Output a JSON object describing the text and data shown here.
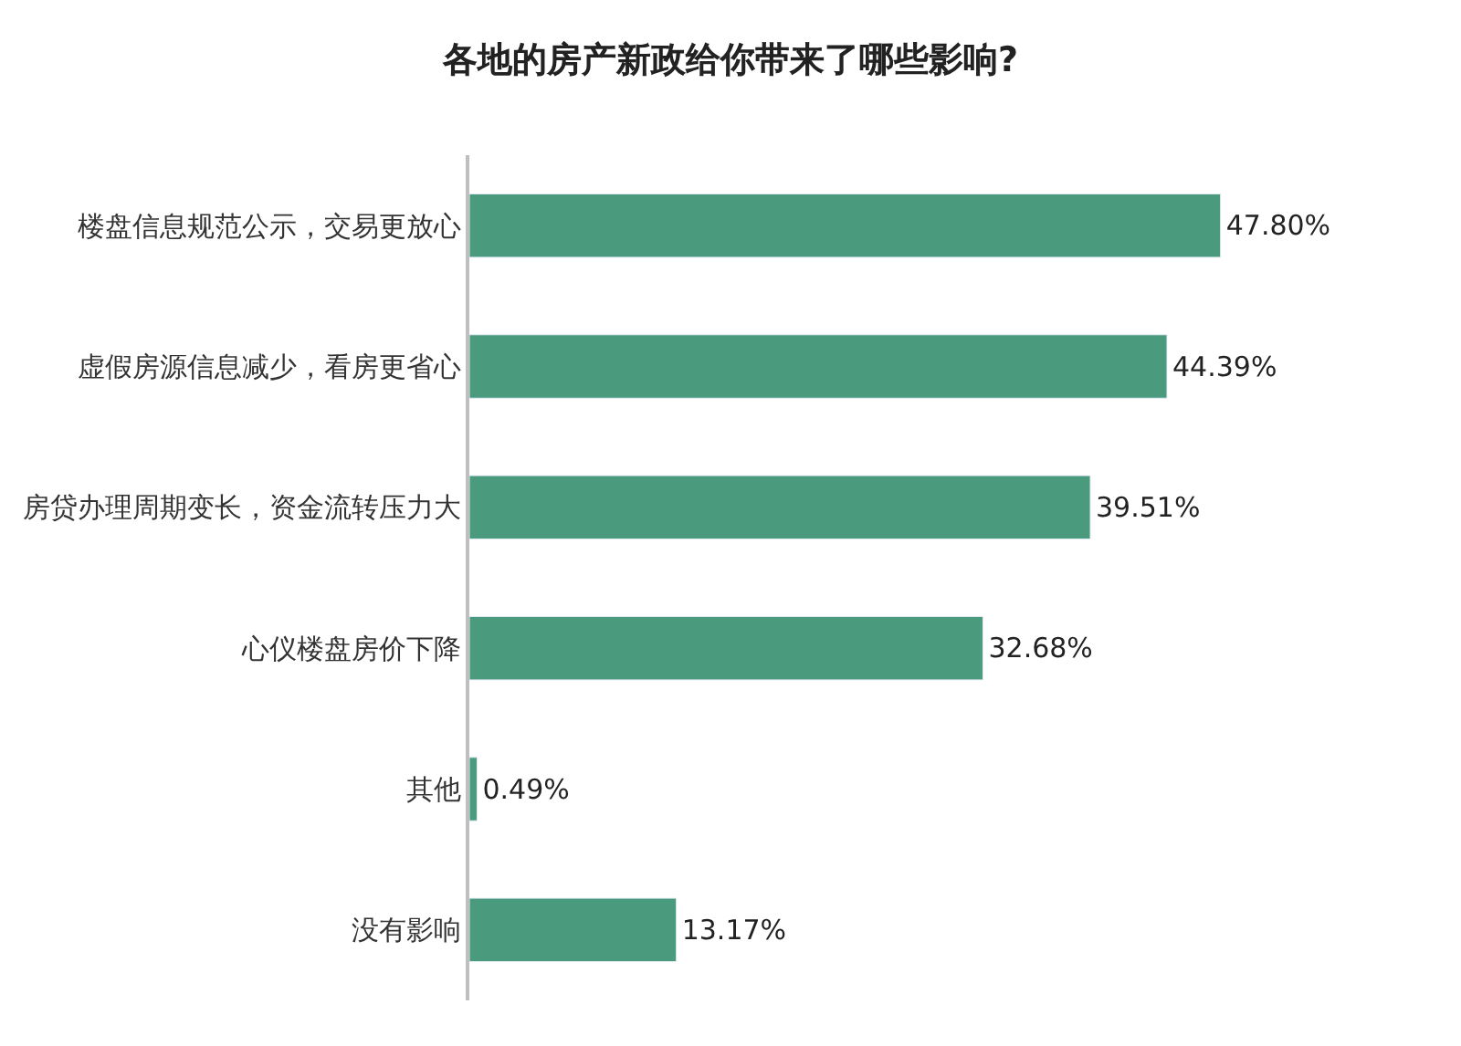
{
  "chart_data": {
    "type": "bar",
    "orientation": "horizontal",
    "title": "各地的房产新政给你带来了哪些影响?",
    "categories": [
      "楼盘信息规范公示，交易更放心",
      "虚假房源信息减少，看房更省心",
      "房贷办理周期变长，资金流转压力大",
      "心仪楼盘房价下降",
      "其他",
      "没有影响"
    ],
    "values": [
      47.8,
      44.39,
      39.51,
      32.68,
      0.49,
      13.17
    ],
    "value_labels": [
      "47.80%",
      "44.39%",
      "39.51%",
      "32.68%",
      "0.49%",
      "13.17%"
    ],
    "color": "#4a9a7e",
    "legend": false,
    "tick_labels": "y"
  }
}
